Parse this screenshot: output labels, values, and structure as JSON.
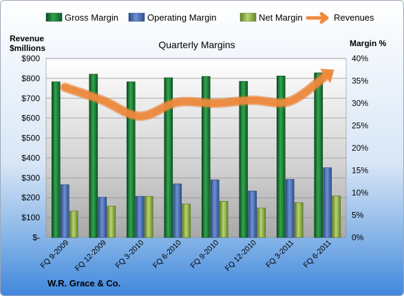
{
  "chart_data": {
    "type": "bar",
    "title": "Quarterly Margins",
    "left_axis_title": [
      "Revenue",
      "$millions"
    ],
    "right_axis_title": "Margin %",
    "footer_label": "W.R. Grace & Co.",
    "categories": [
      "FQ 9-2009",
      "FQ 12-2009",
      "FQ 3-2010",
      "FQ 6-2010",
      "FQ 9-2010",
      "FQ 12-2010",
      "FQ 3-2011",
      "FQ 6-2011"
    ],
    "left_axis": {
      "min": 0,
      "max": 900,
      "step": 100,
      "tick_labels": [
        "$-",
        "$100",
        "$200",
        "$300",
        "$400",
        "$500",
        "$600",
        "$700",
        "$800",
        "$900"
      ]
    },
    "right_axis": {
      "min": 0,
      "max": 40,
      "step": 5,
      "tick_labels": [
        "0%",
        "5%",
        "10%",
        "15%",
        "20%",
        "25%",
        "30%",
        "35%",
        "40%"
      ]
    },
    "series": [
      {
        "name": "Gross Margin",
        "axis": "right",
        "type": "bar",
        "color": "#1e7a36",
        "values": [
          34.8,
          36.5,
          34.8,
          35.7,
          36.0,
          34.9,
          36.1,
          36.8
        ]
      },
      {
        "name": "Operating Margin",
        "axis": "right",
        "type": "bar",
        "color": "#4a6eb0",
        "values": [
          11.8,
          9.0,
          9.2,
          12.0,
          12.9,
          10.4,
          13.0,
          15.6
        ]
      },
      {
        "name": "Net Margin",
        "axis": "right",
        "type": "bar",
        "color": "#8fb04a",
        "values": [
          5.9,
          7.0,
          9.2,
          7.5,
          8.1,
          6.6,
          7.8,
          9.3
        ]
      },
      {
        "name": "Revenues",
        "axis": "left",
        "type": "line",
        "color": "#ed8a3c",
        "values": [
          755,
          690,
          610,
          680,
          675,
          690,
          685,
          820
        ]
      }
    ],
    "legend_position": "top",
    "grid": true
  }
}
